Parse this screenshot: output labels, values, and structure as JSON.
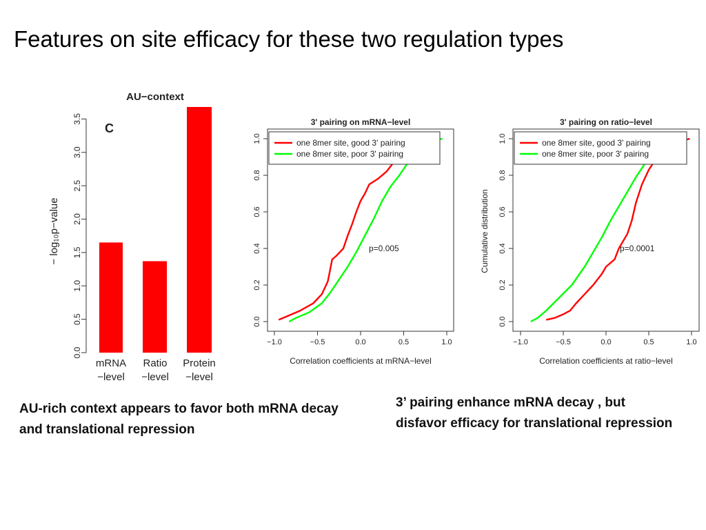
{
  "slide": {
    "title": "Features on site efficacy for these two regulation types",
    "caption_left": "AU-rich context appears to favor both mRNA decay and translational repression",
    "caption_right": "3’ pairing enhance mRNA decay , but disfavor efficacy for translational repression"
  },
  "colors": {
    "bar": "#ff0000",
    "good": "#ff0000",
    "poor": "#00ff00"
  },
  "chart_data": [
    {
      "type": "bar",
      "title": "AU−context",
      "panel_label": "C",
      "categories": [
        "mRNA\n−level",
        "Ratio\n−level",
        "Protein\n−level"
      ],
      "values": [
        1.65,
        1.37,
        3.68
      ],
      "ylabel": "− log₁₀p−value",
      "ylim": [
        0,
        3.68
      ],
      "yticks": [
        "0.0",
        "0.5",
        "1.0",
        "1.5",
        "2.0",
        "2.5",
        "3.0",
        "3.5"
      ],
      "grid": false
    },
    {
      "type": "line",
      "title": "3' pairing on mRNA−level",
      "xlabel": "Correlation coefficients at mRNA−level",
      "ylabel": "",
      "xlim": [
        -1.0,
        1.0
      ],
      "ylim": [
        0.0,
        1.0
      ],
      "xticks": [
        "−1.0",
        "−0.5",
        "0.0",
        "0.5",
        "1.0"
      ],
      "yticks": [
        "0.0",
        "0.2",
        "0.4",
        "0.6",
        "0.8",
        "1.0"
      ],
      "annotation": "p=0.005",
      "legend_position": "top-right",
      "series": [
        {
          "name": "one 8mer site, good 3' pairing",
          "x": [
            -0.95,
            -0.85,
            -0.7,
            -0.55,
            -0.45,
            -0.38,
            -0.33,
            -0.28,
            -0.2,
            -0.15,
            -0.1,
            -0.05,
            0.0,
            0.05,
            0.1,
            0.2,
            0.3,
            0.4,
            0.5,
            0.6,
            0.7
          ],
          "y": [
            0.01,
            0.03,
            0.06,
            0.1,
            0.15,
            0.22,
            0.34,
            0.36,
            0.4,
            0.47,
            0.53,
            0.6,
            0.66,
            0.7,
            0.75,
            0.78,
            0.82,
            0.88,
            0.93,
            0.97,
            1.0
          ]
        },
        {
          "name": "one 8mer site, poor 3' pairing",
          "x": [
            -0.83,
            -0.75,
            -0.6,
            -0.45,
            -0.35,
            -0.25,
            -0.15,
            -0.05,
            0.05,
            0.15,
            0.25,
            0.35,
            0.45,
            0.55,
            0.65,
            0.75,
            0.85,
            0.95
          ],
          "y": [
            0.0,
            0.02,
            0.05,
            0.1,
            0.16,
            0.23,
            0.3,
            0.38,
            0.47,
            0.56,
            0.66,
            0.74,
            0.8,
            0.87,
            0.93,
            0.97,
            0.99,
            1.0
          ]
        }
      ]
    },
    {
      "type": "line",
      "title": "3' pairing on ratio−level",
      "xlabel": "Correlation coefficients at ratio−level",
      "ylabel": "Cumulative distribution",
      "xlim": [
        -1.0,
        1.0
      ],
      "ylim": [
        0.0,
        1.0
      ],
      "xticks": [
        "−1.0",
        "−0.5",
        "0.0",
        "0.5",
        "1.0"
      ],
      "yticks": [
        "0.0",
        "0.2",
        "0.4",
        "0.6",
        "0.8",
        "1.0"
      ],
      "annotation": "p=0.0001",
      "legend_position": "top-right",
      "series": [
        {
          "name": "one 8mer site, good 3' pairing",
          "x": [
            -0.7,
            -0.6,
            -0.5,
            -0.42,
            -0.35,
            -0.25,
            -0.15,
            -0.05,
            0.0,
            0.1,
            0.15,
            0.25,
            0.3,
            0.35,
            0.42,
            0.5,
            0.6,
            0.7,
            0.8,
            0.9,
            0.98
          ],
          "y": [
            0.01,
            0.02,
            0.04,
            0.06,
            0.1,
            0.15,
            0.2,
            0.26,
            0.3,
            0.34,
            0.4,
            0.48,
            0.55,
            0.65,
            0.75,
            0.83,
            0.9,
            0.95,
            0.98,
            0.99,
            1.0
          ]
        },
        {
          "name": "one 8mer site, poor 3' pairing",
          "x": [
            -0.88,
            -0.8,
            -0.7,
            -0.55,
            -0.4,
            -0.25,
            -0.15,
            -0.05,
            0.05,
            0.15,
            0.25,
            0.35,
            0.45,
            0.55,
            0.65,
            0.75,
            0.85,
            0.95
          ],
          "y": [
            0.0,
            0.02,
            0.06,
            0.13,
            0.2,
            0.3,
            0.38,
            0.46,
            0.55,
            0.63,
            0.71,
            0.79,
            0.86,
            0.92,
            0.96,
            0.98,
            0.99,
            1.0
          ]
        }
      ]
    }
  ]
}
